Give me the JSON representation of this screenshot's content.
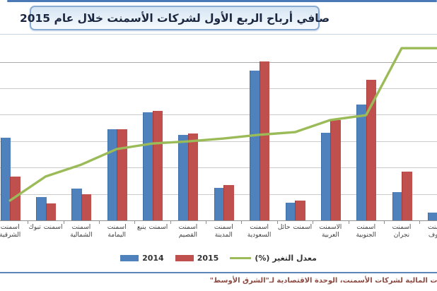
{
  "header": {
    "title": "صافي أرباح الربع الأول لشركات الأسمنت خلال عام 2015"
  },
  "legend": {
    "series_2014": "2014",
    "series_2015": "2015",
    "series_change": "معدل التغير (%)"
  },
  "footer": {
    "source_caption": "نات المالية لشركات الأسمنت، الوحدة الاقتصادية لـ\"الشرق الأوسط\""
  },
  "colors": {
    "bar_2014": "#4f81bd",
    "bar_2015": "#c0504d",
    "change_line": "#9bbb59",
    "title_border": "#88abd4",
    "top_rule": "#4a79b8",
    "bottom_rule": "#5e86b8",
    "gridline": "#cbcbcb"
  },
  "chart_data": {
    "type": "bar",
    "title": "صافي أرباح الربع الأول لشركات الأسمنت خلال عام 2015",
    "categories": [
      "اسمنت الشرقية",
      "اسمنت تبوك",
      "اسمنت الشمالية",
      "اسمنت اليمامة",
      "اسمنت ينبع",
      "اسمنت القصيم",
      "اسمنت المدينة",
      "اسمنت السعودية",
      "اسمنت حائل",
      "الاسمنت العربية",
      "اسمنت الجنوبية",
      "اسمنت نجران",
      "اسمنت الجوف"
    ],
    "series": [
      {
        "name": "2014",
        "type": "bar",
        "color": "#4f81bd",
        "values": [
          3.13,
          0.88,
          1.2,
          3.45,
          4.09,
          3.24,
          1.23,
          5.67,
          0.67,
          3.32,
          4.39,
          1.07,
          0.29
        ]
      },
      {
        "name": "2015",
        "type": "bar",
        "color": "#c0504d",
        "values": [
          1.66,
          0.64,
          0.99,
          3.45,
          4.14,
          3.29,
          1.34,
          6.02,
          0.75,
          3.8,
          5.32,
          1.84,
          null
        ]
      },
      {
        "name": "معدل التغير (%)",
        "type": "line",
        "color": "#9bbb59",
        "values": [
          0.75,
          1.66,
          2.11,
          2.7,
          2.91,
          2.99,
          3.1,
          3.24,
          3.34,
          3.8,
          3.98,
          6.52,
          6.52
        ]
      }
    ],
    "ylabel": "",
    "xlabel": "",
    "ylim": [
      0,
      7
    ],
    "grid": true,
    "legend_position": "bottom",
    "note": "y-axis tick labels cropped out of frame; values estimated in gridline units; first and last categories partially cropped at image edges"
  }
}
